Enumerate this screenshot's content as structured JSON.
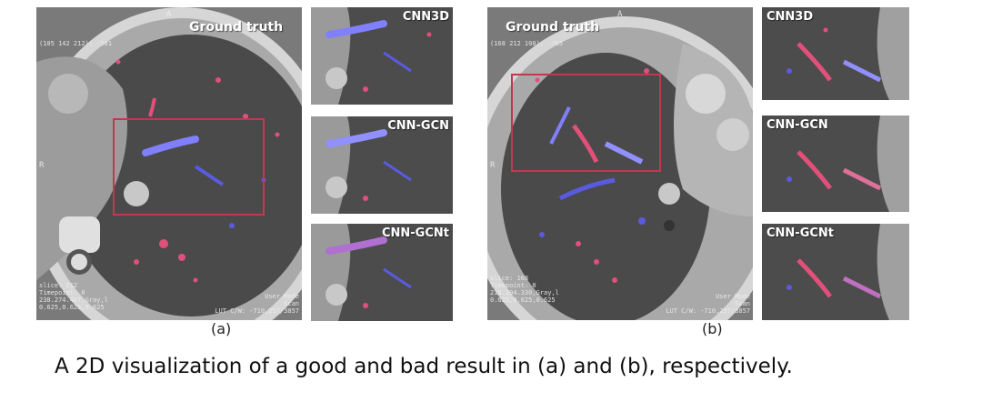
{
  "figure_a": {
    "main_label": "Ground truth",
    "coords": "(105 142 212); -581",
    "slice_info": [
      "slice: 212",
      "Timepoint: 0",
      "238.274.407,Gray,l",
      "0.625,0.625,0.625"
    ],
    "mode_info": [
      "User Mode",
      "Scan",
      "LUT C/W: -710,257/3857"
    ],
    "orient_top": "A",
    "orient_left": "R",
    "sublabel": "(a)",
    "thumbnails": [
      "CNN3D",
      "CNN-GCN",
      "CNN-GCNt"
    ]
  },
  "figure_b": {
    "main_label": "Ground truth",
    "coords": "(168 212 108); -765",
    "slice_info": [
      "slice: 168",
      "Timepoint: 0",
      "218.294.330,Gray,l",
      "0.625,0.625,0.625"
    ],
    "mode_info": [
      "User Mode",
      "Scan",
      "LUT C/W: -710,257/3857"
    ],
    "orient_top": "A",
    "orient_left": "R",
    "sublabel": "(b)",
    "thumbnails": [
      "CNN3D",
      "CNN-GCN",
      "CNN-GCNt"
    ]
  },
  "caption": "A 2D visualization of a good and bad result in (a) and (b), respectively.",
  "colors": {
    "roi_box": "#c0394f",
    "artery": "#e0507a",
    "vein": "#5a5ae0"
  }
}
